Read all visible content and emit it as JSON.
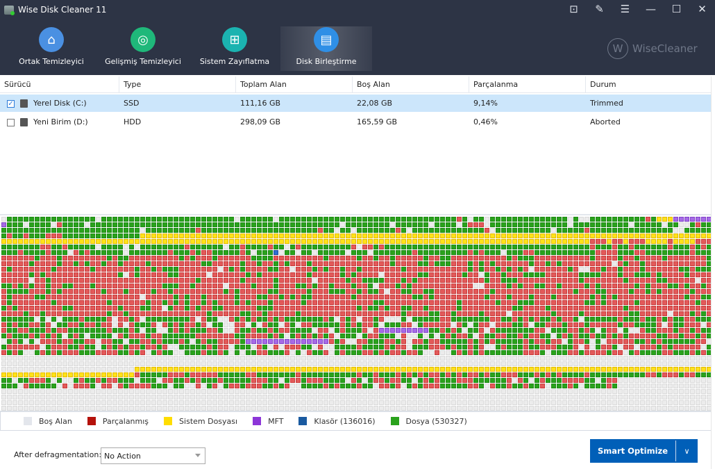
{
  "window": {
    "title": "Wise Disk Cleaner 11",
    "brand": "WiseCleaner"
  },
  "nav": [
    {
      "label": "Ortak Temizleyici",
      "icon": "broom-icon",
      "color": "#4a90e2"
    },
    {
      "label": "Gelişmiş Temizleyici",
      "icon": "vacuum-icon",
      "color": "#1fb87a"
    },
    {
      "label": "Sistem Zayıflatma",
      "icon": "windows-icon",
      "color": "#1bb3b0"
    },
    {
      "label": "Disk Birleştirme",
      "icon": "disk-icon",
      "color": "#2f8fe6",
      "active": true
    }
  ],
  "table": {
    "headers": [
      "Sürücü",
      "Type",
      "Toplam Alan",
      "Boş Alan",
      "Parçalanma",
      "Durum"
    ],
    "rows": [
      {
        "checked": true,
        "cells": [
          "Yerel Disk (C:)",
          "SSD",
          "111,16 GB",
          "22,08 GB",
          "9,14%",
          "Trimmed"
        ]
      },
      {
        "checked": false,
        "cells": [
          "Yeni Birim (D:)",
          "HDD",
          "298,09 GB",
          "165,59 GB",
          "0,46%",
          "Aborted"
        ]
      }
    ]
  },
  "legend": [
    {
      "label": "Boş Alan",
      "color": "#e3e6ec"
    },
    {
      "label": "Parçalanmış",
      "color": "#b5120b"
    },
    {
      "label": "Sistem Dosyası",
      "color": "#ffdd00"
    },
    {
      "label": "MFT",
      "color": "#8c35d8"
    },
    {
      "label": "Klasör (136016)",
      "color": "#1a5aa0"
    },
    {
      "label": "Dosya (530327)",
      "color": "#2aa21c"
    }
  ],
  "bottom": {
    "after_label": "After defragmentation:",
    "after_value": "No Action",
    "button": "Smart Optimize"
  }
}
